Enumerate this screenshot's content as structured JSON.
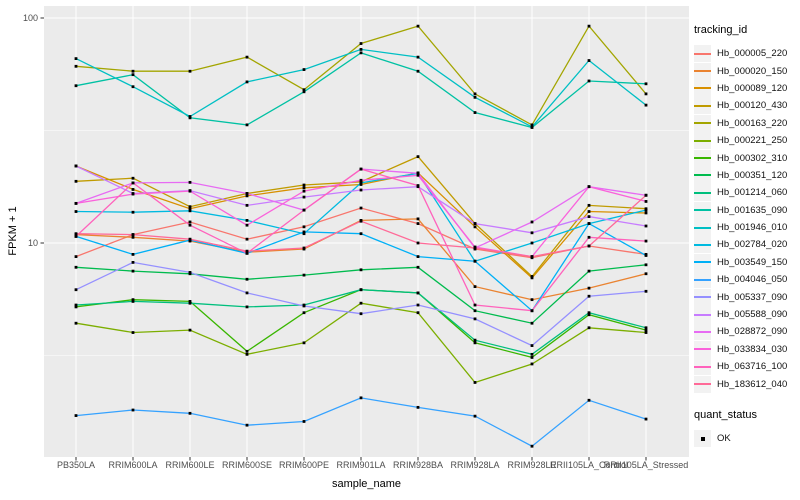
{
  "figure": {
    "background": "#ffffff",
    "panel_background": "#ebebeb",
    "grid_color": "#ffffff",
    "tick_mark_color": "#333333",
    "tick_label_color": "#4d4d4d",
    "marker_color": "#000000",
    "legend_key_background": "#f2f2f2"
  },
  "axes": {
    "x_title": "sample_name",
    "y_title": "FPKM + 1",
    "y_tick_labels": [
      "100",
      "10"
    ]
  },
  "legend": {
    "tracking_title": "tracking_id",
    "quant_title": "quant_status",
    "quant_items": [
      {
        "label": "OK"
      }
    ]
  },
  "chart_data": {
    "type": "line",
    "title": "",
    "xlabel": "sample_name",
    "ylabel": "FPKM + 1",
    "y_scale": "log10",
    "ylim": [
      1.1,
      110
    ],
    "y_major_ticks": [
      100,
      10
    ],
    "y_minor_gridlines": [
      31.62,
      3.162
    ],
    "grid": true,
    "legend_position": "right",
    "marker": "small-black-square",
    "quant_status": "OK",
    "categories": [
      "PB350LA",
      "RRIM600LA",
      "RRIM600LE",
      "RRIM600SE",
      "RRIM600PE",
      "RRIM901LA",
      "RRIM928BA",
      "RRIM928LA",
      "RRIM928LE",
      "RRII105LA_Control",
      "RRII105LA_Stressed"
    ],
    "series": [
      {
        "name": "Hb_000005_220",
        "color": "#F8766D",
        "values": [
          8.7,
          10.9,
          12.4,
          10.4,
          11.8,
          14.3,
          12.2,
          9.4,
          8.6,
          9.7,
          8.9
        ]
      },
      {
        "name": "Hb_000020_150",
        "color": "#EA8331",
        "values": [
          10.9,
          10.6,
          10.2,
          9.1,
          9.4,
          12.6,
          12.8,
          6.4,
          5.6,
          6.3,
          7.3
        ]
      },
      {
        "name": "Hb_000089_120",
        "color": "#D89000",
        "values": [
          22.0,
          17.3,
          14.2,
          16.2,
          17.6,
          18.2,
          20.5,
          11.8,
          7.0,
          13.8,
          13.6
        ]
      },
      {
        "name": "Hb_000120_430",
        "color": "#C09B00",
        "values": [
          18.8,
          19.4,
          14.5,
          16.6,
          18.1,
          18.7,
          24.2,
          12.2,
          7.1,
          14.7,
          14.2
        ]
      },
      {
        "name": "Hb_000163_220",
        "color": "#A3A500",
        "values": [
          61,
          58,
          58,
          67,
          48,
          77,
          92,
          46,
          33.5,
          92,
          46
        ]
      },
      {
        "name": "Hb_000221_250",
        "color": "#7CAE00",
        "values": [
          4.4,
          4.0,
          4.1,
          3.2,
          3.6,
          5.4,
          4.9,
          2.4,
          2.9,
          4.2,
          4.0
        ]
      },
      {
        "name": "Hb_000302_310",
        "color": "#39B600",
        "values": [
          5.2,
          5.6,
          5.5,
          3.3,
          4.9,
          6.2,
          6.0,
          3.6,
          3.1,
          4.8,
          4.1
        ]
      },
      {
        "name": "Hb_000351_120",
        "color": "#00BB4E",
        "values": [
          7.8,
          7.5,
          7.3,
          6.9,
          7.2,
          7.6,
          7.8,
          5.0,
          4.4,
          7.5,
          8.0
        ]
      },
      {
        "name": "Hb_001214_060",
        "color": "#00BF7D",
        "values": [
          5.3,
          5.5,
          5.4,
          5.2,
          5.3,
          6.2,
          6.0,
          3.7,
          3.2,
          4.9,
          4.2
        ]
      },
      {
        "name": "Hb_001635_090",
        "color": "#00C1A3",
        "values": [
          50,
          56,
          36,
          33.5,
          47,
          70,
          58,
          38,
          32.6,
          52.5,
          51
        ]
      },
      {
        "name": "Hb_001946_010",
        "color": "#00BFC4",
        "values": [
          66,
          49.5,
          36.5,
          52,
          59,
          72.5,
          67,
          44.4,
          32.8,
          64.7,
          41
        ]
      },
      {
        "name": "Hb_002784_020",
        "color": "#00BAE0",
        "values": [
          13.8,
          13.7,
          13.9,
          12.6,
          11.0,
          18.5,
          20.4,
          8.3,
          10.0,
          12.2,
          14.0
        ]
      },
      {
        "name": "Hb_003549_150",
        "color": "#00B0F6",
        "values": [
          10.7,
          8.9,
          10.3,
          9.0,
          11.2,
          11.0,
          8.7,
          8.3,
          5.0,
          12.2,
          8.8
        ]
      },
      {
        "name": "Hb_004046_050",
        "color": "#35A2FF",
        "values": [
          1.71,
          1.81,
          1.75,
          1.55,
          1.61,
          2.05,
          1.86,
          1.7,
          1.25,
          2.0,
          1.65
        ]
      },
      {
        "name": "Hb_005337_090",
        "color": "#9590FF",
        "values": [
          6.2,
          8.2,
          7.4,
          6.0,
          5.25,
          4.85,
          5.3,
          4.6,
          3.5,
          5.8,
          6.1
        ]
      },
      {
        "name": "Hb_005588_090",
        "color": "#C77CFF",
        "values": [
          22.0,
          16.6,
          17.1,
          14.7,
          16.0,
          17.2,
          17.8,
          12.2,
          11.1,
          13.1,
          11.9
        ]
      },
      {
        "name": "Hb_028872_090",
        "color": "#E76BF3",
        "values": [
          15.0,
          18.5,
          18.6,
          16.6,
          14.0,
          21.3,
          20.4,
          9.5,
          12.4,
          17.8,
          16.3
        ]
      },
      {
        "name": "Hb_033834_030",
        "color": "#FA62DB",
        "values": [
          15.0,
          16.5,
          17.0,
          12.0,
          17.0,
          19.0,
          20.0,
          9.6,
          8.7,
          17.8,
          15.3
        ]
      },
      {
        "name": "Hb_063716_100",
        "color": "#FF62BC",
        "values": [
          10.7,
          18.5,
          12.0,
          9.0,
          14.0,
          21.3,
          18.0,
          5.3,
          5.0,
          10.6,
          10.2
        ]
      },
      {
        "name": "Hb_183612_040",
        "color": "#FF6A98",
        "values": [
          11.0,
          10.9,
          10.4,
          9.2,
          9.5,
          12.5,
          10.0,
          9.5,
          8.7,
          9.7,
          16.3
        ]
      }
    ]
  }
}
